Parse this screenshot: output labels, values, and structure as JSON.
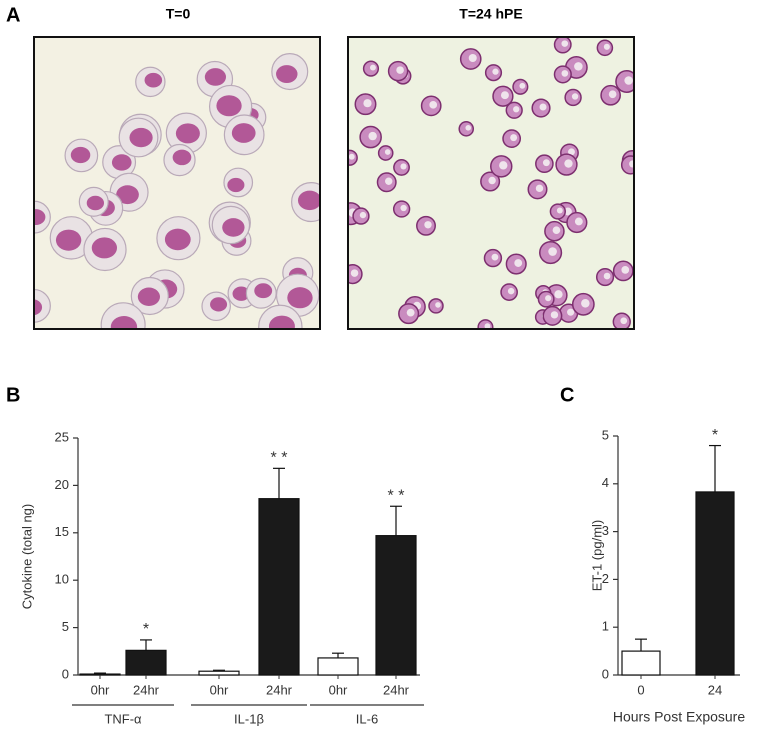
{
  "panel_labels": [
    "A",
    "B",
    "C"
  ],
  "images": [
    {
      "title": "T=0"
    },
    {
      "title": "T=24 hPE"
    }
  ],
  "chart_data": [
    {
      "type": "bar",
      "ylabel": "Cytokine (total ng)",
      "categories": [
        "0hr",
        "24hr",
        "0hr",
        "24hr",
        "0hr",
        "24hr"
      ],
      "groups": [
        "TNF-α",
        "IL-1β",
        "IL-6"
      ],
      "values": [
        0.1,
        2.6,
        0.4,
        18.6,
        1.8,
        14.7
      ],
      "errors": [
        0.1,
        1.1,
        0.1,
        3.2,
        0.5,
        3.1
      ],
      "colors": [
        "#ffffff",
        "#1a1a1a",
        "#ffffff",
        "#1a1a1a",
        "#ffffff",
        "#1a1a1a"
      ],
      "annotations": [
        null,
        "*",
        null,
        "* *",
        null,
        "* *"
      ],
      "ylim": [
        0,
        25
      ],
      "yticks": [
        0,
        5,
        10,
        15,
        20,
        25
      ]
    },
    {
      "type": "bar",
      "ylabel": "ET-1 (pg/ml)",
      "xlabel": "Hours Post Exposure",
      "categories": [
        "0",
        "24"
      ],
      "values": [
        0.5,
        3.83
      ],
      "errors": [
        0.25,
        0.97
      ],
      "colors": [
        "#ffffff",
        "#1a1a1a"
      ],
      "annotations": [
        null,
        "*"
      ],
      "ylim": [
        0,
        5
      ],
      "yticks": [
        0,
        1,
        2,
        3,
        4,
        5
      ]
    }
  ]
}
